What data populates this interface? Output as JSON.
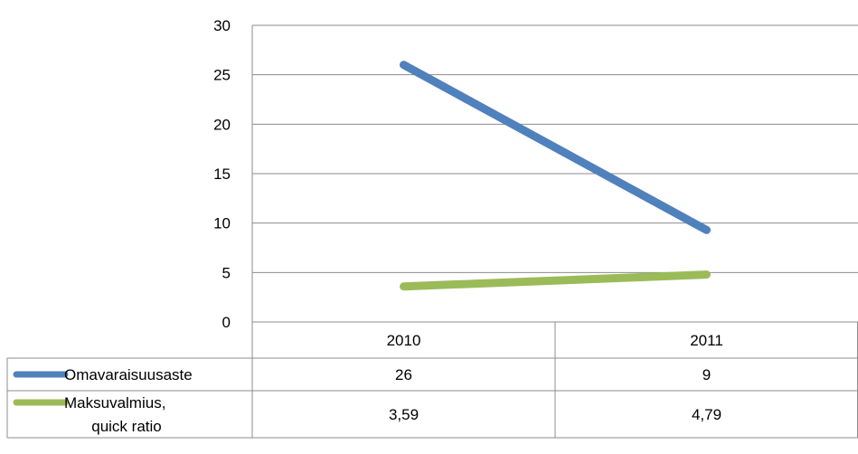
{
  "chart_data": {
    "type": "line",
    "categories": [
      "2010",
      "2011"
    ],
    "series": [
      {
        "name": "Omavaraisuusaste",
        "name_lines": [
          "Omavaraisuusaste"
        ],
        "values": [
          26,
          9.3
        ],
        "labels": [
          "26",
          "9"
        ],
        "color": "#4f81bd"
      },
      {
        "name": "Maksuvalmius, quick ratio",
        "name_lines": [
          "Maksuvalmius,",
          "quick ratio"
        ],
        "values": [
          3.59,
          4.79
        ],
        "labels": [
          "3,59",
          "4,79"
        ],
        "color": "#9bbb59"
      }
    ],
    "ylim": [
      0,
      30
    ],
    "yticks": [
      "0",
      "5",
      "10",
      "15",
      "20",
      "25",
      "30"
    ],
    "grid": true,
    "legend": "data-table"
  }
}
